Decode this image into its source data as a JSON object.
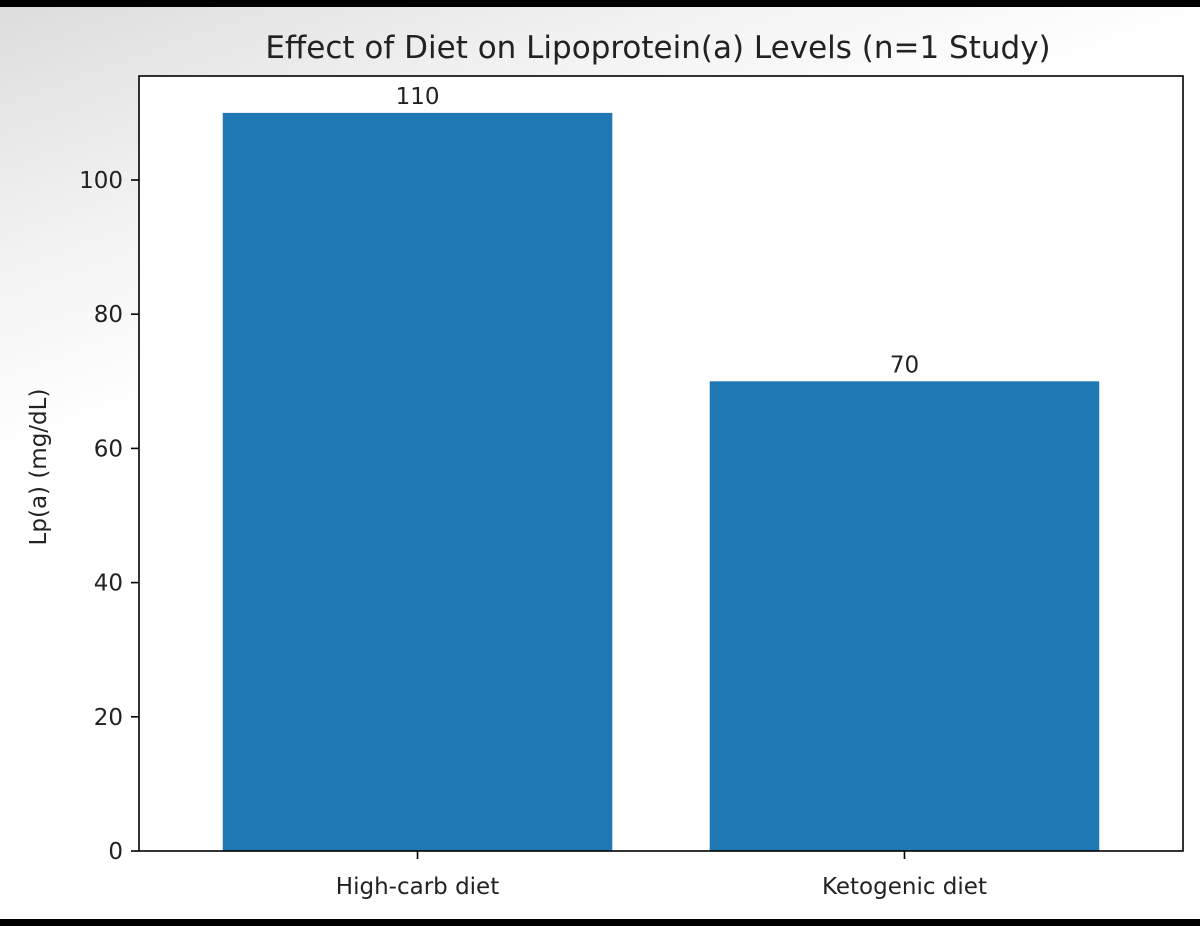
{
  "chart_data": {
    "type": "bar",
    "title": "Effect of Diet on Lipoprotein(a) Levels (n=1 Study)",
    "xlabel": "",
    "ylabel": "Lp(a) (mg/dL)",
    "categories": [
      "High-carb diet",
      "Ketogenic diet"
    ],
    "values": [
      110,
      70
    ],
    "data_labels": [
      "110",
      "70"
    ],
    "ylim": [
      0,
      115.5
    ],
    "yticks": [
      0,
      20,
      40,
      60,
      80,
      100
    ],
    "bar_color": "#1f77b4",
    "grid": false,
    "legend": "none"
  }
}
